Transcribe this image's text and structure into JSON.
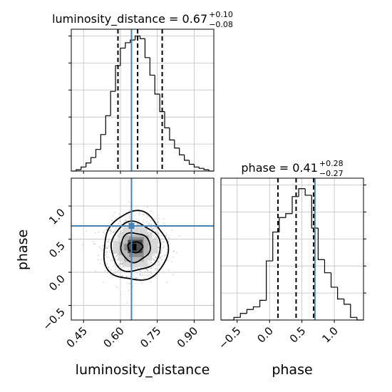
{
  "chart_data": {
    "type": "corner",
    "parameters": [
      "luminosity_distance",
      "phase"
    ],
    "truths": {
      "luminosity_distance": 0.645,
      "phase": 0.7
    },
    "colors": {
      "truth": "#4682b4",
      "hist": "#000000",
      "grid": "#c0c0c0",
      "scatter": "#a0a0a0"
    },
    "grid": true,
    "panels": [
      {
        "id": "hist-luminosity-distance",
        "type": "histogram",
        "parameter": "luminosity_distance",
        "title": {
          "prefix": "luminosity_distance = 0.67",
          "upper": "+0.10",
          "lower": "−0.08"
        },
        "xlim": [
          0.4,
          0.98
        ],
        "ylim": [
          0,
          1.05
        ],
        "quantiles": [
          0.59,
          0.67,
          0.77
        ],
        "bin_edges": [
          0.4,
          0.42,
          0.44,
          0.46,
          0.48,
          0.5,
          0.52,
          0.54,
          0.56,
          0.58,
          0.6,
          0.62,
          0.64,
          0.66,
          0.68,
          0.7,
          0.72,
          0.74,
          0.76,
          0.78,
          0.8,
          0.82,
          0.84,
          0.86,
          0.88,
          0.9,
          0.92,
          0.94,
          0.96,
          0.98
        ],
        "counts": [
          0.0,
          0.01,
          0.03,
          0.06,
          0.1,
          0.16,
          0.27,
          0.41,
          0.59,
          0.78,
          0.91,
          0.95,
          0.97,
          1.0,
          0.98,
          0.84,
          0.71,
          0.57,
          0.44,
          0.32,
          0.23,
          0.17,
          0.12,
          0.08,
          0.05,
          0.03,
          0.02,
          0.01,
          0.0
        ]
      },
      {
        "id": "hist-phase",
        "type": "histogram",
        "parameter": "phase",
        "title": {
          "prefix": "phase = 0.41",
          "upper": "+0.28",
          "lower": "−0.27"
        },
        "xlim": [
          -0.75,
          1.45
        ],
        "ylim": [
          0,
          1.08
        ],
        "quantiles": [
          0.13,
          0.41,
          0.68
        ],
        "bin_edges": [
          -0.75,
          -0.65,
          -0.55,
          -0.45,
          -0.35,
          -0.25,
          -0.15,
          -0.05,
          0.05,
          0.15,
          0.25,
          0.35,
          0.45,
          0.55,
          0.65,
          0.75,
          0.85,
          0.95,
          1.05,
          1.15,
          1.25,
          1.35,
          1.45
        ],
        "counts": [
          0.0,
          0.0,
          0.02,
          0.05,
          0.08,
          0.1,
          0.15,
          0.45,
          0.67,
          0.78,
          0.81,
          0.94,
          1.0,
          0.95,
          0.7,
          0.46,
          0.36,
          0.25,
          0.16,
          0.12,
          0.02,
          0.0
        ]
      },
      {
        "id": "joint-luminosity-distance-phase",
        "type": "2d",
        "x": "luminosity_distance",
        "y": "phase",
        "xlim": [
          0.4,
          0.98
        ],
        "ylim": [
          -0.72,
          1.42
        ],
        "center": [
          0.66,
          0.38
        ],
        "contour_levels": [
          {
            "rx": 0.03,
            "ry": 0.08
          },
          {
            "rx": 0.06,
            "ry": 0.22
          },
          {
            "rx": 0.1,
            "ry": 0.37
          },
          {
            "rx": 0.13,
            "ry": 0.52
          }
        ]
      }
    ],
    "axes": {
      "luminosity_distance": {
        "label": "luminosity_distance",
        "ticks": [
          0.45,
          0.6,
          0.75,
          0.9
        ],
        "tick_labels": [
          "0.45",
          "0.60",
          "0.75",
          "0.90"
        ]
      },
      "phase_y": {
        "label": "phase",
        "ticks": [
          -0.5,
          0.0,
          0.5,
          1.0
        ],
        "tick_labels": [
          "−0.5",
          "0.0",
          "0.5",
          "1.0"
        ]
      },
      "phase_x": {
        "label": "phase",
        "ticks": [
          -0.5,
          0.0,
          0.5,
          1.0
        ],
        "tick_labels": [
          "−0.5",
          "0.0",
          "0.5",
          "1.0"
        ]
      }
    }
  }
}
